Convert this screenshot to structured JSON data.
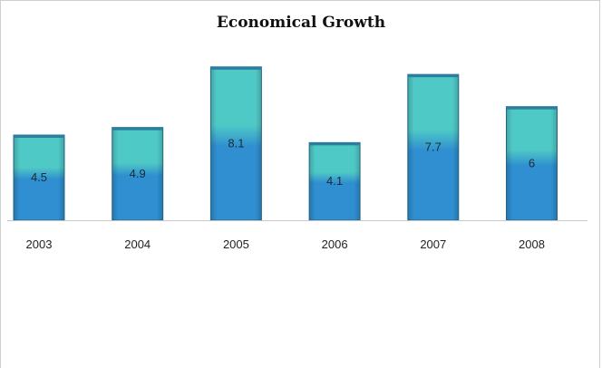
{
  "chart_data": {
    "type": "bar",
    "title": "Economical Growth",
    "categories": [
      "2003",
      "2004",
      "2005",
      "2006",
      "2007",
      "2008"
    ],
    "values": [
      4.5,
      4.9,
      8.1,
      4.1,
      7.7,
      6
    ],
    "data_labels": [
      "4.5",
      "4.9",
      "8.1",
      "4.1",
      "7.7",
      "6"
    ],
    "xlabel": "",
    "ylabel": "",
    "ylim": [
      0,
      9
    ],
    "grid": false,
    "legend": "none",
    "colors": {
      "bar_top": "#4fc9c6",
      "bar_bottom": "#2f8fd0",
      "bar_edge": "#27708f",
      "baseline": "#c8c8c8"
    }
  }
}
